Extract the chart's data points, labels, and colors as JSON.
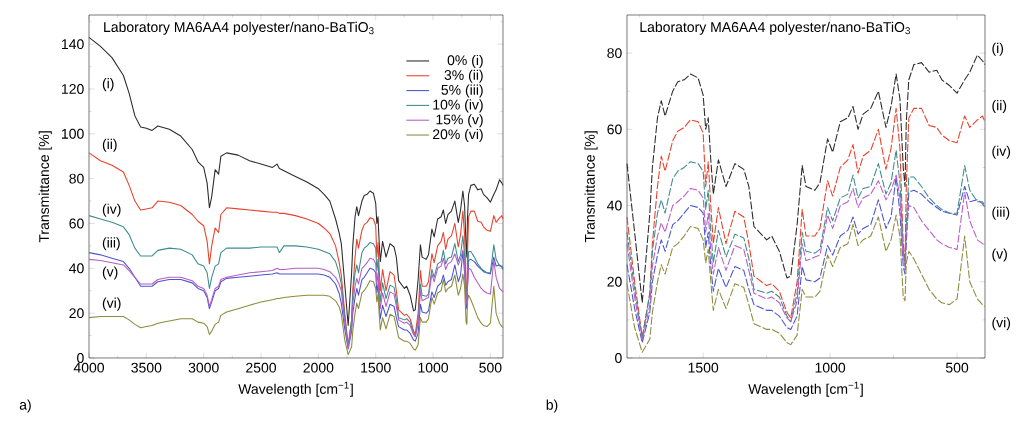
{
  "chart_data": [
    {
      "type": "line",
      "title": "Laboratory MA6AA4 polyester/nano-BaTiO$_{3}$",
      "xlabel": "Wavelength [cm$^{−1}$]",
      "ylabel": "Transmittance [%]",
      "legend": "top right",
      "line_style": "solid",
      "xlim": [
        4000,
        390
      ],
      "ylim": [
        0,
        153
      ],
      "xticks": [
        4000,
        3500,
        3000,
        2500,
        2000,
        1500,
        1000,
        500,
        {
          "value": 3750,
          "label": null
        },
        {
          "value": 3250,
          "label": null
        },
        {
          "value": 2750,
          "label": null
        },
        {
          "value": 2250,
          "label": null
        },
        {
          "value": 1750,
          "label": null
        },
        {
          "value": 1250,
          "label": null
        },
        {
          "value": 750,
          "label": null
        }
      ],
      "yticks": [
        0,
        20,
        40,
        60,
        80,
        100,
        120,
        140,
        {
          "value": 10,
          "label": null
        },
        {
          "value": 30,
          "label": null
        },
        {
          "value": 50,
          "label": null
        },
        {
          "value": 70,
          "label": null
        },
        {
          "value": 90,
          "label": null
        },
        {
          "value": 110,
          "label": null
        },
        {
          "value": 130,
          "label": null
        },
        {
          "value": 150,
          "label": null
        }
      ],
      "x": [
        4000,
        3900,
        3800,
        3700,
        3650,
        3600,
        3550,
        3500,
        3450,
        3400,
        3300,
        3200,
        3100,
        3050,
        3000,
        2970,
        2950,
        2930,
        2900,
        2870,
        2850,
        2800,
        2700,
        2600,
        2500,
        2400,
        2360,
        2340,
        2300,
        2200,
        2100,
        2000,
        1950,
        1900,
        1850,
        1820,
        1800,
        1770,
        1740,
        1710,
        1700,
        1680,
        1665,
        1650,
        1620,
        1600,
        1575,
        1550,
        1520,
        1500,
        1490,
        1480,
        1470,
        1460,
        1440,
        1410,
        1375,
        1340,
        1320,
        1300,
        1250,
        1230,
        1200,
        1170,
        1155,
        1130,
        1110,
        1095,
        1060,
        1040,
        1010,
        990,
        960,
        930,
        910,
        890,
        870,
        840,
        810,
        780,
        760,
        740,
        725,
        712,
        705,
        700,
        690,
        670,
        640,
        610,
        580,
        560,
        530,
        500,
        470,
        450,
        420,
        400,
        390
      ],
      "series": [
        {
          "name": "0% (i)",
          "color": "#2b2b2b",
          "values": [
            143,
            139,
            134,
            126,
            118,
            108,
            103,
            102.5,
            101.5,
            103.5,
            102,
            99,
            93,
            87.5,
            85,
            78,
            67,
            72,
            84,
            82,
            90,
            91.5,
            90.5,
            88,
            86.5,
            85,
            86.5,
            84.5,
            83.5,
            81,
            78.5,
            75.5,
            73,
            70,
            62,
            56,
            51,
            33,
            14.5,
            38,
            50,
            63,
            67.5,
            63.5,
            70,
            72.5,
            73,
            74.5,
            73.5,
            69,
            60,
            63,
            52,
            43,
            52,
            45,
            51,
            49.5,
            45,
            34.5,
            31,
            32,
            28,
            21,
            21.5,
            35,
            50.5,
            45,
            44,
            46,
            57.5,
            54,
            62,
            63,
            66,
            60,
            64,
            65.5,
            70,
            60.5,
            66,
            74.5,
            68,
            50,
            45,
            62,
            73,
            77,
            77.5,
            75,
            75.5,
            73,
            71.5,
            69.5,
            73,
            75,
            79.5,
            78,
            77
          ]
        },
        {
          "name": "3% (ii)",
          "color": "#e8412c",
          "values": [
            91.5,
            88,
            86,
            83,
            77,
            70,
            66,
            66.5,
            67,
            70,
            69.5,
            68,
            64,
            61,
            59,
            52,
            42,
            50,
            58,
            56,
            64,
            67,
            66.5,
            66,
            65.5,
            65,
            65,
            64.5,
            64.5,
            63.5,
            62,
            60,
            58,
            55.5,
            50,
            43,
            37,
            20,
            5.5,
            17,
            30,
            45,
            53,
            49,
            57,
            59.5,
            60.5,
            62.5,
            62,
            59,
            45,
            51.5,
            40,
            30,
            39.5,
            30,
            38.5,
            37,
            30,
            21.5,
            19,
            19.5,
            17.5,
            12,
            10.5,
            20,
            39,
            32,
            32,
            34,
            46.5,
            42.5,
            50,
            52,
            56,
            48.5,
            53,
            54.5,
            60,
            49.5,
            55,
            65.5,
            55,
            30,
            25,
            45,
            63,
            65.5,
            65.5,
            61,
            60.5,
            58.5,
            57,
            56.5,
            63.5,
            60.5,
            62.5,
            63.5,
            62
          ]
        },
        {
          "name": "5% (iii)",
          "color": "#4a55d0",
          "values": [
            47,
            46,
            44.5,
            43,
            40,
            36,
            32,
            32,
            32,
            34,
            35,
            35,
            33.5,
            31,
            30,
            27,
            22,
            25,
            30,
            31,
            34,
            35.5,
            36,
            36.5,
            37,
            37.5,
            38,
            37.5,
            37.5,
            37.5,
            37.5,
            37.5,
            37,
            36,
            33,
            29,
            24.5,
            13,
            4,
            12,
            20,
            27,
            31,
            28,
            35,
            36,
            38,
            40,
            39.5,
            38,
            29,
            33,
            24,
            17.5,
            23.5,
            18.5,
            24,
            23,
            18,
            14,
            12.5,
            12.5,
            11,
            8,
            7.5,
            11,
            24,
            20.5,
            20,
            21,
            29.5,
            27,
            32,
            33.5,
            37,
            32.5,
            34,
            35,
            41.5,
            34,
            37,
            47.5,
            38,
            24,
            22,
            30,
            43.5,
            44,
            43,
            41,
            39.5,
            38.5,
            38,
            37.5,
            45,
            41,
            41.5,
            40.5,
            39.5
          ]
        },
        {
          "name": "10% (iv)",
          "color": "#3d8c8c",
          "values": [
            63.5,
            62,
            60.5,
            58.5,
            55,
            49,
            45.5,
            45.5,
            45.5,
            48,
            49,
            48.5,
            46,
            42,
            41,
            38,
            31,
            36,
            41,
            42,
            47,
            49,
            49,
            49,
            49.5,
            49.5,
            49.5,
            47,
            50,
            50,
            49.5,
            48.5,
            47.5,
            46.5,
            43,
            38,
            33,
            18,
            5,
            17,
            28,
            38,
            41.5,
            38,
            47,
            49,
            50,
            51.5,
            51,
            49,
            39,
            44,
            33,
            25,
            33.5,
            26.5,
            32.5,
            31.5,
            26,
            18,
            17,
            17.5,
            16,
            11,
            9.5,
            17,
            33,
            28,
            27.5,
            28.5,
            39.5,
            36,
            42,
            43,
            48,
            42,
            44.5,
            45,
            51,
            43,
            46,
            54.5,
            46,
            28,
            25,
            35,
            47.5,
            47.5,
            45,
            42,
            40,
            39,
            38,
            38,
            50.5,
            44,
            41,
            41,
            40
          ]
        },
        {
          "name": "15% (v)",
          "color": "#b85cc8",
          "values": [
            44,
            43.5,
            42.5,
            41.5,
            39,
            36,
            33,
            33,
            33,
            35,
            36,
            36,
            34.5,
            32,
            31,
            28,
            23,
            26,
            31,
            32,
            35,
            36,
            37,
            38,
            38.5,
            39,
            40,
            39.5,
            39.5,
            40,
            40,
            40,
            39.5,
            38.5,
            36,
            33,
            30,
            16,
            4.5,
            14,
            24,
            32,
            35.5,
            33,
            40,
            41,
            42.5,
            44.5,
            44,
            42,
            33,
            38,
            28,
            22,
            29,
            23,
            29.5,
            28.5,
            23,
            17,
            15.5,
            16,
            14.5,
            10.5,
            9.5,
            15,
            30,
            25.5,
            26.5,
            27,
            37.5,
            34,
            40,
            41,
            44.5,
            39.5,
            42,
            43,
            46.5,
            41.5,
            44,
            48,
            42,
            26,
            24,
            32,
            40,
            39.5,
            36,
            33.5,
            31,
            30,
            29,
            28.5,
            43.5,
            36,
            31,
            30,
            29.5
          ]
        },
        {
          "name": "20% (vi)",
          "color": "#8c8c3c",
          "values": [
            18,
            18.5,
            18.5,
            18.5,
            17,
            15,
            13.5,
            14,
            14.5,
            15.5,
            16.5,
            17.5,
            17.5,
            16,
            15.5,
            14,
            10.5,
            12,
            15,
            16,
            19,
            20.5,
            22,
            23.5,
            25,
            26,
            26.5,
            26.5,
            27,
            27.5,
            28,
            28,
            28,
            27.5,
            25.5,
            23,
            19.5,
            8,
            1.5,
            5,
            12,
            20,
            24.5,
            22,
            29,
            30,
            32,
            34.5,
            34,
            31,
            25,
            28.5,
            20,
            12.5,
            18,
            13,
            19.5,
            18.5,
            14,
            9,
            7.5,
            7.5,
            6.5,
            4,
            3.5,
            6,
            18,
            16,
            16,
            17.5,
            27,
            24,
            29,
            30,
            35,
            29.5,
            31,
            32,
            37,
            28,
            31,
            37.5,
            32,
            16,
            15,
            25,
            28,
            26,
            22,
            18,
            15.5,
            14.5,
            14,
            15.5,
            32,
            20,
            15.5,
            14,
            13.5
          ]
        }
      ],
      "annotations": [
        "(i)",
        "(ii)",
        "(iv)",
        "(iii)",
        "(v)",
        "(vi)",
        "a)"
      ]
    },
    {
      "type": "line",
      "title": "Laboratory MA6AA4 polyester/nano-BaTiO$_{3}$",
      "xlabel": "Wavelength [cm$^{−1}$]",
      "ylabel": "Transmittance [%]",
      "line_style": "dashed",
      "xlim": [
        1800,
        390
      ],
      "ylim": [
        0,
        90
      ],
      "xticks": [
        1500,
        1000,
        500,
        {
          "value": 1750,
          "label": null
        },
        {
          "value": 1250,
          "label": null
        },
        {
          "value": 750,
          "label": null
        }
      ],
      "yticks": [
        0,
        20,
        40,
        60,
        80,
        {
          "value": 10,
          "label": null
        },
        {
          "value": 30,
          "label": null
        },
        {
          "value": 50,
          "label": null
        },
        {
          "value": 70,
          "label": null
        }
      ],
      "x": [
        1800,
        1770,
        1740,
        1710,
        1700,
        1680,
        1665,
        1650,
        1620,
        1600,
        1575,
        1550,
        1520,
        1500,
        1490,
        1480,
        1470,
        1460,
        1440,
        1410,
        1375,
        1340,
        1320,
        1300,
        1250,
        1230,
        1200,
        1170,
        1155,
        1130,
        1110,
        1095,
        1060,
        1040,
        1010,
        990,
        960,
        930,
        910,
        890,
        870,
        840,
        810,
        780,
        760,
        740,
        725,
        712,
        705,
        700,
        690,
        670,
        640,
        610,
        580,
        560,
        530,
        500,
        470,
        450,
        420,
        400,
        390
      ],
      "series": [
        {
          "color": "#2b2b2b",
          "values": [
            51,
            33,
            14.5,
            38,
            50,
            63,
            67.5,
            63.5,
            70,
            72.5,
            73,
            74.5,
            73.5,
            69,
            60,
            63,
            52,
            43,
            52,
            45,
            51,
            49.5,
            45,
            34.5,
            31,
            32,
            28,
            21,
            21.5,
            35,
            50.5,
            45,
            44,
            46,
            57.5,
            54,
            62,
            63,
            66,
            60,
            64,
            65.5,
            70,
            60.5,
            66,
            74.5,
            68,
            50,
            45,
            62,
            73,
            77,
            77.5,
            75,
            75.5,
            73,
            71.5,
            69.5,
            73,
            75,
            79.5,
            78,
            77
          ]
        },
        {
          "color": "#e8412c",
          "values": [
            37,
            20,
            5.5,
            17,
            30,
            45,
            53,
            49,
            57,
            59.5,
            60.5,
            62.5,
            62,
            59,
            45,
            51.5,
            40,
            30,
            39.5,
            30,
            38.5,
            37,
            30,
            21.5,
            19,
            19.5,
            17.5,
            12,
            10.5,
            20,
            39,
            32,
            32,
            34,
            46.5,
            42.5,
            50,
            52,
            56,
            48.5,
            53,
            54.5,
            60,
            49.5,
            55,
            65.5,
            55,
            30,
            25,
            45,
            63,
            65.5,
            65.5,
            61,
            60.5,
            58.5,
            57,
            56.5,
            63.5,
            60.5,
            62.5,
            63.5,
            62
          ]
        },
        {
          "color": "#4a55d0",
          "values": [
            24.5,
            13,
            4,
            12,
            20,
            27,
            31,
            28,
            35,
            36,
            38,
            40,
            39.5,
            38,
            29,
            33,
            24,
            17.5,
            23.5,
            18.5,
            24,
            23,
            18,
            14,
            12.5,
            12.5,
            11,
            8,
            7.5,
            11,
            24,
            20.5,
            20,
            21,
            29.5,
            27,
            32,
            33.5,
            37,
            32.5,
            34,
            35,
            41.5,
            34,
            37,
            47.5,
            38,
            24,
            22,
            30,
            43.5,
            44,
            43,
            41,
            39.5,
            38.5,
            38,
            37.5,
            45,
            41,
            41.5,
            40.5,
            39.5
          ]
        },
        {
          "color": "#3d8c8c",
          "values": [
            33,
            18,
            5,
            17,
            28,
            38,
            41.5,
            38,
            47,
            49,
            50,
            51.5,
            51,
            49,
            39,
            44,
            33,
            25,
            33.5,
            26.5,
            32.5,
            31.5,
            26,
            18,
            17,
            17.5,
            16,
            11,
            9.5,
            17,
            33,
            28,
            27.5,
            28.5,
            39.5,
            36,
            42,
            43,
            48,
            42,
            44.5,
            45,
            51,
            43,
            46,
            54.5,
            46,
            28,
            25,
            35,
            47.5,
            47.5,
            45,
            42,
            40,
            39,
            38,
            38,
            50.5,
            44,
            41,
            41,
            40
          ]
        },
        {
          "color": "#b85cc8",
          "values": [
            30,
            16,
            4.5,
            14,
            24,
            32,
            35.5,
            33,
            40,
            41,
            42.5,
            44.5,
            44,
            42,
            33,
            38,
            28,
            22,
            29,
            23,
            29.5,
            28.5,
            23,
            17,
            15.5,
            16,
            14.5,
            10.5,
            9.5,
            15,
            30,
            25.5,
            26.5,
            27,
            37.5,
            34,
            40,
            41,
            44.5,
            39.5,
            42,
            43,
            46.5,
            41.5,
            44,
            48,
            42,
            26,
            24,
            32,
            40,
            39.5,
            36,
            33.5,
            31,
            30,
            29,
            28.5,
            43.5,
            36,
            31,
            30,
            29.5
          ]
        },
        {
          "color": "#8c8c3c",
          "values": [
            19.5,
            8,
            1.5,
            5,
            12,
            20,
            24.5,
            22,
            29,
            30,
            32,
            34.5,
            34,
            31,
            25,
            28.5,
            20,
            12.5,
            18,
            13,
            19.5,
            18.5,
            14,
            9,
            7.5,
            7.5,
            6.5,
            4,
            3.5,
            6,
            18,
            16,
            16,
            17.5,
            27,
            24,
            29,
            30,
            35,
            29.5,
            31,
            32,
            37,
            28,
            31,
            37.5,
            32,
            16,
            15,
            25,
            28,
            26,
            22,
            18,
            15.5,
            14.5,
            14,
            15.5,
            32,
            20,
            15.5,
            14,
            13.5
          ]
        }
      ],
      "annotations": [
        "(i)",
        "(ii)",
        "(iv)",
        "(iii)",
        "(v)",
        "(vi)",
        "b)"
      ]
    }
  ]
}
